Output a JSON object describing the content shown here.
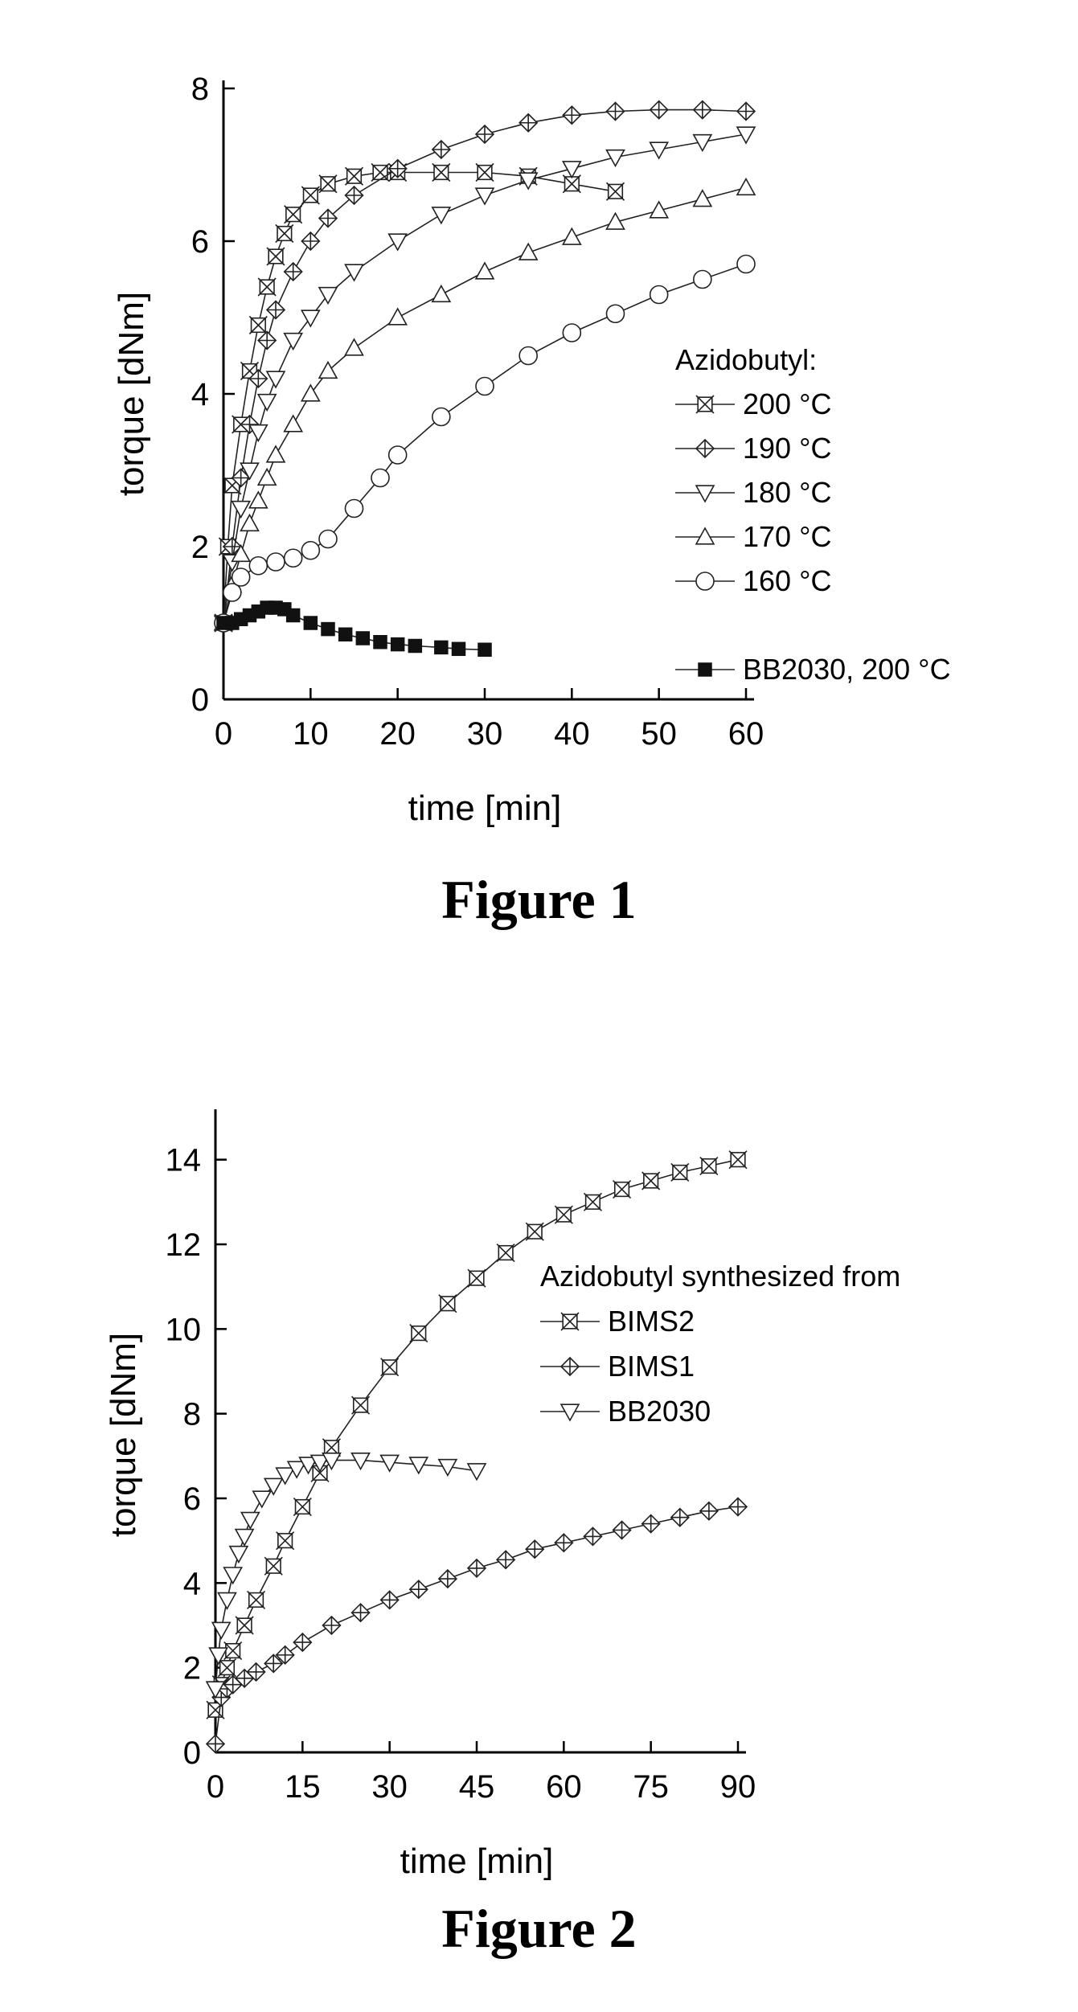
{
  "chart_data": [
    {
      "type": "line",
      "caption": "Figure 1",
      "xlabel": "time [min]",
      "ylabel": "torque [dNm]",
      "xlim": [
        0,
        60
      ],
      "ylim": [
        0,
        8
      ],
      "xticks": [
        0,
        10,
        20,
        30,
        40,
        50,
        60
      ],
      "yticks": [
        0,
        2,
        4,
        6,
        8
      ],
      "legend_title": "Azidobutyl:",
      "legend_position": "right",
      "grid": false,
      "series": [
        {
          "name": "200 °C",
          "marker": "x-box",
          "x": [
            0,
            0.5,
            1,
            2,
            3,
            4,
            5,
            6,
            7,
            8,
            10,
            12,
            15,
            18,
            20,
            25,
            30,
            35,
            40,
            45
          ],
          "y": [
            1.0,
            2.0,
            2.8,
            3.6,
            4.3,
            4.9,
            5.4,
            5.8,
            6.1,
            6.35,
            6.6,
            6.75,
            6.85,
            6.9,
            6.9,
            6.9,
            6.9,
            6.85,
            6.75,
            6.65
          ]
        },
        {
          "name": "190 °C",
          "marker": "diamond-cross",
          "x": [
            0,
            1,
            2,
            3,
            4,
            5,
            6,
            8,
            10,
            12,
            15,
            20,
            25,
            30,
            35,
            40,
            45,
            50,
            55,
            60
          ],
          "y": [
            1.0,
            2.0,
            2.9,
            3.6,
            4.2,
            4.7,
            5.1,
            5.6,
            6.0,
            6.3,
            6.6,
            6.95,
            7.2,
            7.4,
            7.55,
            7.65,
            7.7,
            7.72,
            7.72,
            7.7
          ]
        },
        {
          "name": "180 °C",
          "marker": "triangle-down",
          "x": [
            0,
            1,
            2,
            3,
            4,
            5,
            6,
            8,
            10,
            12,
            15,
            20,
            25,
            30,
            35,
            40,
            45,
            50,
            55,
            60
          ],
          "y": [
            1.0,
            1.8,
            2.5,
            3.0,
            3.5,
            3.9,
            4.2,
            4.7,
            5.0,
            5.3,
            5.6,
            6.0,
            6.35,
            6.6,
            6.8,
            6.95,
            7.1,
            7.2,
            7.3,
            7.4
          ]
        },
        {
          "name": "170 °C",
          "marker": "triangle-up",
          "x": [
            0,
            1,
            2,
            3,
            4,
            5,
            6,
            8,
            10,
            12,
            15,
            20,
            25,
            30,
            35,
            40,
            45,
            50,
            55,
            60
          ],
          "y": [
            1.0,
            1.5,
            1.9,
            2.3,
            2.6,
            2.9,
            3.2,
            3.6,
            4.0,
            4.3,
            4.6,
            5.0,
            5.3,
            5.6,
            5.85,
            6.05,
            6.25,
            6.4,
            6.55,
            6.7
          ]
        },
        {
          "name": "160 °C",
          "marker": "circle",
          "x": [
            0,
            1,
            2,
            4,
            6,
            8,
            10,
            12,
            15,
            18,
            20,
            25,
            30,
            35,
            40,
            45,
            50,
            55,
            60
          ],
          "y": [
            1.0,
            1.4,
            1.6,
            1.75,
            1.8,
            1.85,
            1.95,
            2.1,
            2.5,
            2.9,
            3.2,
            3.7,
            4.1,
            4.5,
            4.8,
            5.05,
            5.3,
            5.5,
            5.7
          ]
        },
        {
          "name": "BB2030, 200 °C",
          "marker": "square-filled",
          "x": [
            0,
            1,
            2,
            3,
            4,
            5,
            6,
            7,
            8,
            10,
            12,
            14,
            16,
            18,
            20,
            22,
            25,
            27,
            30
          ],
          "y": [
            1.0,
            1.0,
            1.05,
            1.1,
            1.15,
            1.2,
            1.2,
            1.18,
            1.1,
            1.0,
            0.92,
            0.85,
            0.8,
            0.75,
            0.72,
            0.7,
            0.68,
            0.66,
            0.65
          ]
        }
      ]
    },
    {
      "type": "line",
      "caption": "Figure 2",
      "xlabel": "time [min]",
      "ylabel": "torque [dNm]",
      "xlim": [
        0,
        90
      ],
      "ylim": [
        0,
        15
      ],
      "xticks": [
        0,
        15,
        30,
        45,
        60,
        75,
        90
      ],
      "yticks": [
        0,
        2,
        4,
        6,
        8,
        10,
        12,
        14
      ],
      "legend_title": "Azidobutyl synthesized from",
      "legend_position": "right",
      "grid": false,
      "series": [
        {
          "name": "BIMS2",
          "marker": "x-box",
          "x": [
            0,
            1,
            2,
            3,
            5,
            7,
            10,
            12,
            15,
            18,
            20,
            25,
            30,
            35,
            40,
            45,
            50,
            55,
            60,
            65,
            70,
            75,
            80,
            85,
            90
          ],
          "y": [
            1.0,
            1.6,
            2.0,
            2.4,
            3.0,
            3.6,
            4.4,
            5.0,
            5.8,
            6.6,
            7.2,
            8.2,
            9.1,
            9.9,
            10.6,
            11.2,
            11.8,
            12.3,
            12.7,
            13.0,
            13.3,
            13.5,
            13.7,
            13.85,
            14.0
          ]
        },
        {
          "name": "BIMS1",
          "marker": "diamond-cross",
          "x": [
            0,
            1,
            2,
            3,
            5,
            7,
            10,
            12,
            15,
            20,
            25,
            30,
            35,
            40,
            45,
            50,
            55,
            60,
            65,
            70,
            75,
            80,
            85,
            90
          ],
          "y": [
            0.2,
            1.3,
            1.5,
            1.6,
            1.75,
            1.9,
            2.1,
            2.3,
            2.6,
            3.0,
            3.3,
            3.6,
            3.85,
            4.1,
            4.35,
            4.55,
            4.8,
            4.95,
            5.1,
            5.25,
            5.4,
            5.55,
            5.7,
            5.8
          ]
        },
        {
          "name": "BB2030",
          "marker": "triangle-down",
          "x": [
            0,
            0.5,
            1,
            2,
            3,
            4,
            5,
            6,
            8,
            10,
            12,
            14,
            16,
            18,
            20,
            25,
            30,
            35,
            40,
            45
          ],
          "y": [
            1.5,
            2.3,
            2.9,
            3.6,
            4.2,
            4.7,
            5.1,
            5.5,
            6.0,
            6.3,
            6.55,
            6.7,
            6.8,
            6.85,
            6.9,
            6.9,
            6.85,
            6.8,
            6.75,
            6.65
          ]
        }
      ]
    }
  ]
}
